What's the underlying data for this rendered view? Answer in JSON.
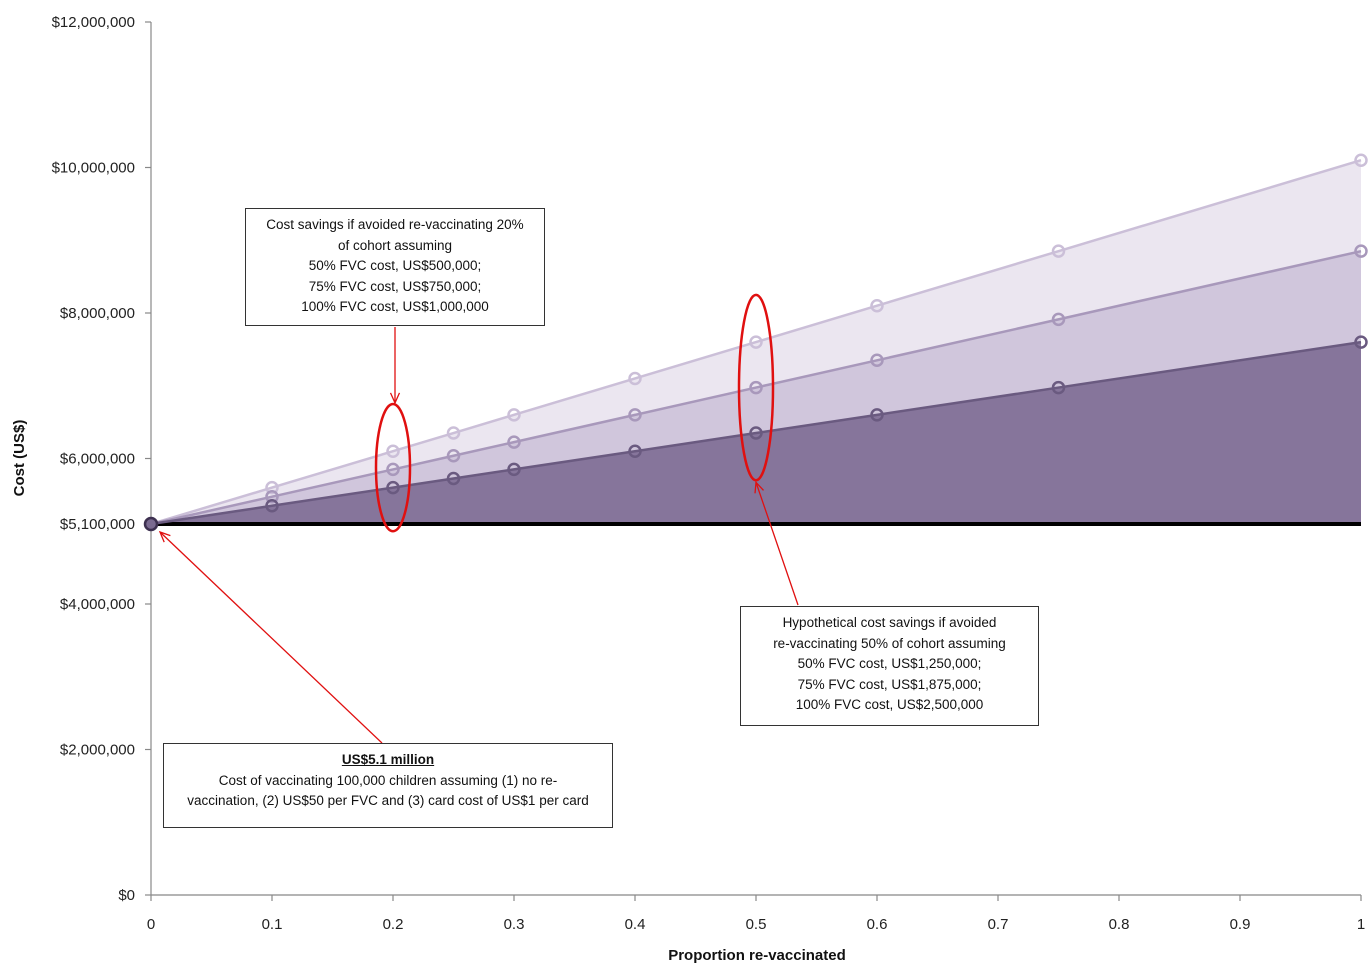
{
  "chart_data": {
    "type": "area",
    "xlabel": "Proportion re-vaccinated",
    "ylabel": "Cost (US$)",
    "xlim": [
      0,
      1
    ],
    "ylim": [
      0,
      12000000
    ],
    "x_ticks": [
      "0",
      "0.1",
      "0.2",
      "0.3",
      "0.4",
      "0.5",
      "0.6",
      "0.7",
      "0.8",
      "0.9",
      "1"
    ],
    "y_ticks": [
      {
        "value": 0,
        "label": "$0"
      },
      {
        "value": 2000000,
        "label": "$2,000,000"
      },
      {
        "value": 4000000,
        "label": "$4,000,000"
      },
      {
        "value": 5100000,
        "label": "$5,100,000"
      },
      {
        "value": 6000000,
        "label": "$6,000,000"
      },
      {
        "value": 8000000,
        "label": "$8,000,000"
      },
      {
        "value": 10000000,
        "label": "$10,000,000"
      },
      {
        "value": 12000000,
        "label": "$12,000,000"
      }
    ],
    "baseline": 5100000,
    "series": [
      {
        "color": "#ebe6f0",
        "line": "#cbbfd8",
        "x": [
          0,
          0.1,
          0.2,
          0.25,
          0.3,
          0.4,
          0.5,
          0.6,
          0.75,
          1
        ],
        "y": [
          5100000,
          5600000,
          6100000,
          6350000,
          6600000,
          7100000,
          7600000,
          8100000,
          8850000,
          10100000
        ]
      },
      {
        "color": "#d0c6dc",
        "line": "#a898bb",
        "x": [
          0,
          0.1,
          0.2,
          0.25,
          0.3,
          0.4,
          0.5,
          0.6,
          0.75,
          1
        ],
        "y": [
          5100000,
          5475000,
          5850000,
          6037500,
          6225000,
          6600000,
          6975000,
          7350000,
          7912500,
          8850000
        ]
      },
      {
        "color": "#86759b",
        "line": "#6a5a80",
        "x": [
          0,
          0.1,
          0.2,
          0.25,
          0.3,
          0.4,
          0.5,
          0.6,
          0.75,
          1
        ],
        "y": [
          5100000,
          5350000,
          5600000,
          5725000,
          5850000,
          6100000,
          6350000,
          6600000,
          6975000,
          7600000
        ]
      }
    ],
    "highlights": [
      {
        "x": 0.2,
        "y_min": 5000000,
        "y_max": 6750000
      },
      {
        "x": 0.5,
        "y_min": 5700000,
        "y_max": 8250000
      }
    ]
  },
  "annotations": {
    "box1": {
      "lines": [
        "Cost savings if avoided re-vaccinating 20%",
        "of cohort assuming",
        "50% FVC cost, US$500,000;",
        "75% FVC cost, US$750,000;",
        "100% FVC cost, US$1,000,000"
      ]
    },
    "box2": {
      "lines": [
        "Hypothetical cost savings if avoided",
        "re-vaccinating 50% of cohort assuming",
        "50% FVC cost, US$1,250,000;",
        "75% FVC cost, US$1,875,000;",
        "100% FVC cost, US$2,500,000"
      ]
    },
    "box3": {
      "header": "US$5.1 million",
      "lines": [
        "Cost of vaccinating 100,000 children assuming (1) no re-",
        "vaccination, (2) US$50 per FVC and (3) card cost of US$1 per card"
      ]
    }
  },
  "colors": {
    "axis": "#888888",
    "baseline": "#000000",
    "highlight": "#e01010",
    "arrow": "#e01010"
  }
}
